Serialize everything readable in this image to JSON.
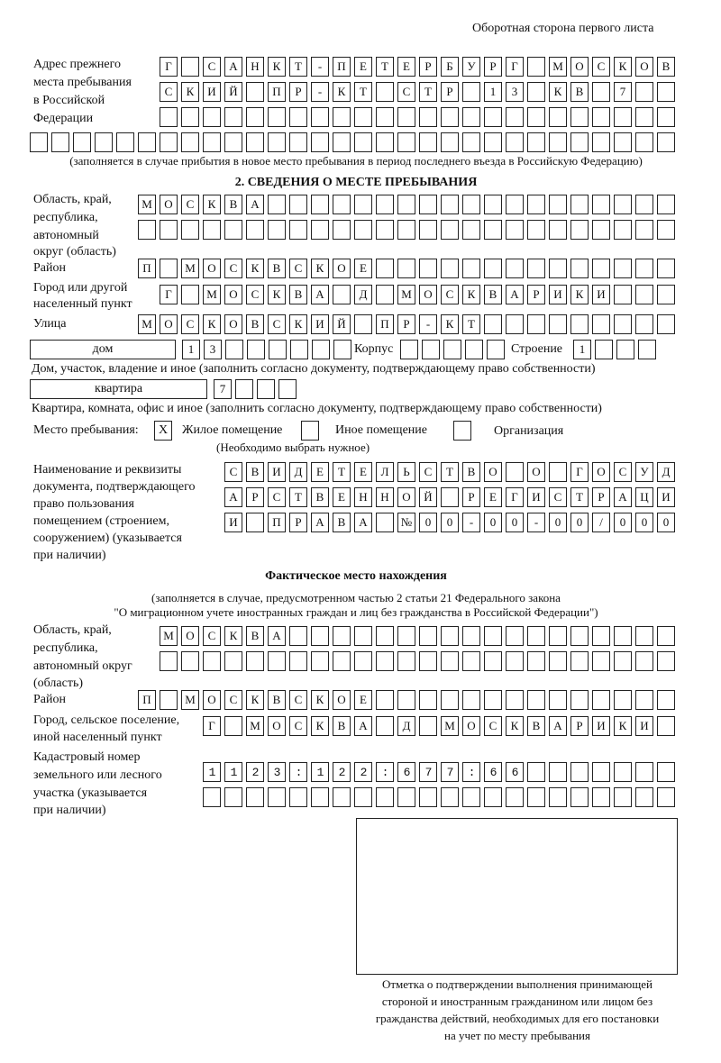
{
  "header": "Оборотная сторона первого листа",
  "prev_address": {
    "label": [
      "Адрес прежнего",
      "места пребывания",
      "в Российской",
      "Федерации"
    ],
    "rows": [
      "Г САНКТ-ПЕТЕРБУРГ МОСКОВ",
      "СКИЙ ПР-КТ СТР 13 КВ 7  ",
      "                        ",
      "                              "
    ],
    "note": "(заполняется в случае прибытия в новое место пребывания в период последнего въезда в Российскую Федерацию)"
  },
  "section2": {
    "title": "2. СВЕДЕНИЯ О МЕСТЕ ПРЕБЫВАНИЯ",
    "region_label": [
      "Область, край,",
      "республика,",
      "автономный",
      "округ (область)"
    ],
    "region_rows": [
      "МОСКВА                   ",
      "                         "
    ],
    "district_label": "Район",
    "district_row": "П МОСКВСКОЕ              ",
    "city_label": [
      "Город или другой",
      "населенный пункт"
    ],
    "city_row": "Г МОСКВА Д МОСКВАРИКИ   ",
    "street_label": "Улица",
    "street_row": "МОСКОВСКИЙ ПР-КТ         ",
    "house_type": "дом",
    "house_row": "13      ",
    "korpus_label": "Корпус",
    "korpus_row": "     ",
    "building_label": "Строение",
    "building_row": "1   ",
    "house_note": "Дом, участок, владение и иное (заполнить согласно документу, подтверждающему право собственности)",
    "flat_type": "квартира",
    "flat_row": "7   ",
    "flat_note": "Квартира, комната, офис и иное (заполнить согласно документу, подтверждающему право собственности)",
    "place_label": "Место пребывания:",
    "options": [
      {
        "label": "Жилое помещение",
        "mark": "X"
      },
      {
        "label": "Иное помещение",
        "mark": ""
      },
      {
        "label": "Организация",
        "mark": ""
      }
    ],
    "choose_note": "(Необходимо выбрать нужное)",
    "doc_label": [
      "Наименование и реквизиты",
      "документа, подтверждающего",
      "право пользования",
      "помещением (строением,",
      "сооружением) (указывается",
      "при наличии)"
    ],
    "doc_rows": [
      "СВИДЕТЕЛЬСТВО О ГОСУД",
      "АРСТВЕННОЙ РЕГИСТРАЦИ",
      "И ПРАВА №00-00-00/000"
    ]
  },
  "actual": {
    "title": "Фактическое место нахождения",
    "note": [
      "(заполняется в случае, предусмотренном частью 2 статьи 21 Федерального закона",
      "\"О миграционном учете иностранных граждан и лиц без гражданства в Российской Федерации\")"
    ],
    "region_label": [
      "Область, край,",
      "республика,",
      "автономный округ",
      "(область)"
    ],
    "region_rows": [
      "МОСКВА                  ",
      "                        "
    ],
    "district_label": "Район",
    "district_row": "П МОСКВСКОЕ              ",
    "city_label": [
      "Город, сельское поселение,",
      "иной населенный пункт"
    ],
    "city_row": "Г МОСКВА Д МОСКВАРИКИ ",
    "cadastre_label": [
      "Кадастровый номер",
      "земельного или лесного",
      "участка (указывается",
      "при наличии)"
    ],
    "cadastre_rows": [
      "1123:122:677:66       ",
      "                      "
    ]
  },
  "stamp_caption": [
    "Отметка о подтверждении выполнения принимающей",
    "стороной и иностранным гражданином или лицом без",
    "гражданства действий, необходимых для его постановки",
    "на учет по месту пребывания"
  ]
}
